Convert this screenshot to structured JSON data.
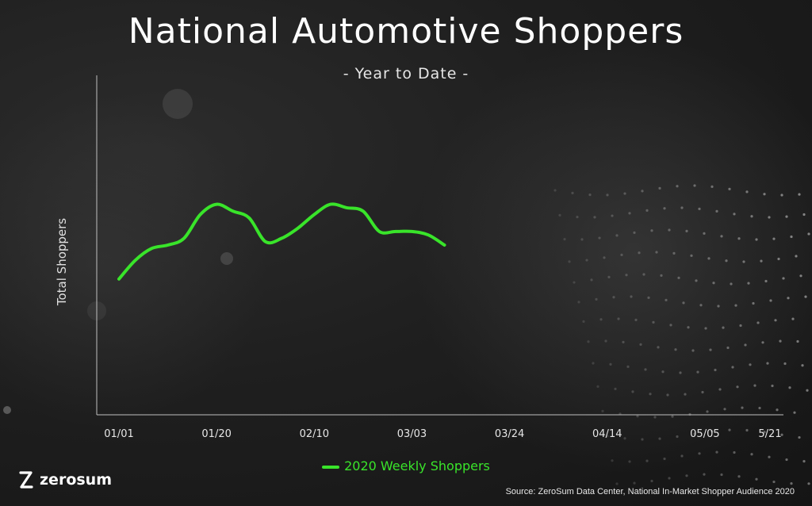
{
  "header": {
    "title": "National Automotive Shoppers",
    "subtitle": "- Year to Date -"
  },
  "footer": {
    "logo_text": "zerosum",
    "source": "Source: ZeroSum Data Center, National In-Market Shopper Audience 2020"
  },
  "colors": {
    "line": "#39e42a",
    "axis": "#bfbfbf",
    "text": "#ffffff"
  },
  "chart_data": {
    "type": "line",
    "title": "National Automotive Shoppers",
    "subtitle": "- Year to Date -",
    "xlabel": "",
    "ylabel": "Total Shoppers",
    "x_tick_labels": [
      "01/01",
      "01/20",
      "02/10",
      "03/03",
      "03/24",
      "04/14",
      "05/05",
      "5/21"
    ],
    "x_tick_weeks": [
      0,
      3,
      6,
      9,
      12,
      15,
      18,
      20
    ],
    "ylim": [
      0,
      100
    ],
    "grid": false,
    "legend": {
      "position": "bottom-center"
    },
    "series": [
      {
        "name": "2020 Weekly Shoppers",
        "color": "#39e42a",
        "x": [
          0,
          0.5,
          1,
          1.5,
          2,
          2.5,
          3,
          3.5,
          4,
          4.5,
          5,
          5.5,
          6,
          6.5,
          7,
          7.5,
          8,
          8.5,
          9,
          9.5,
          10
        ],
        "values": [
          40,
          45.5,
          49,
          50,
          52,
          59,
          62,
          60,
          58,
          51,
          52,
          55,
          59,
          62,
          61,
          60,
          54,
          54,
          54,
          53,
          50
        ]
      }
    ]
  }
}
